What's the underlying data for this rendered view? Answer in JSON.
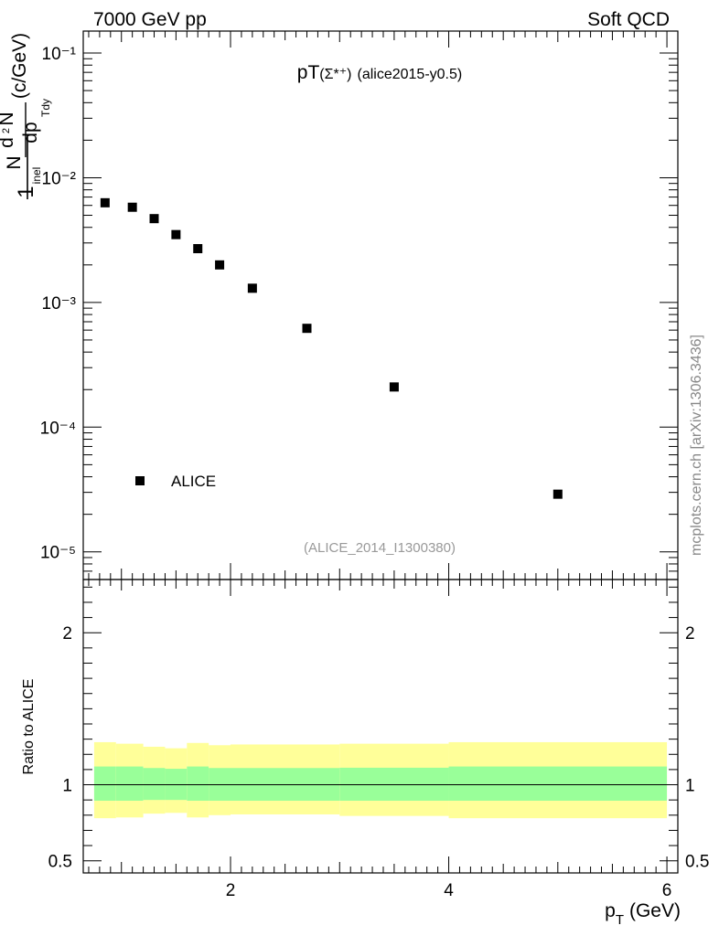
{
  "header": {
    "left_text": "7000 GeV pp",
    "right_text": "Soft QCD"
  },
  "plot": {
    "title_main": "pT",
    "title_particle": "(Σ*⁺)",
    "title_tag": "(alice2015-y0.5)",
    "watermark": "(ALICE_2014_I1300380)",
    "side_label": "mcplots.cern.ch [arXiv:1306.3436]"
  },
  "axes": {
    "ylabel_top": "(c/GeV)",
    "ylabel_ratio": "Ratio to ALICE",
    "xlabel": "p_T (GeV)",
    "xlabel_main": "p",
    "xlabel_sub": "T",
    "xlabel_unit": "(GeV)"
  },
  "chart_data": [
    {
      "type": "scatter",
      "panel": "main",
      "yscale": "log",
      "xlim": [
        0.65,
        6.1
      ],
      "ylim": [
        6e-06,
        0.15
      ],
      "ytick_labels": [
        "10⁻⁵",
        "10⁻⁴",
        "10⁻³",
        "10⁻²",
        "10⁻¹"
      ],
      "ytick_values": [
        1e-05,
        0.0001,
        0.001,
        0.01,
        0.1
      ],
      "series": [
        {
          "name": "ALICE",
          "color": "#000000",
          "x": [
            0.85,
            1.1,
            1.3,
            1.5,
            1.7,
            1.9,
            2.2,
            2.7,
            3.5,
            5.0
          ],
          "y": [
            0.0063,
            0.0058,
            0.0047,
            0.0035,
            0.0027,
            0.002,
            0.0013,
            0.00062,
            0.00021,
            2.9e-05
          ]
        }
      ],
      "legend": {
        "label": "ALICE",
        "placement": "bottom-left"
      }
    },
    {
      "type": "area",
      "panel": "ratio",
      "xlim": [
        0.65,
        6.1
      ],
      "ylim": [
        0.42,
        2.35
      ],
      "xtick_labels": [
        "2",
        "4",
        "6"
      ],
      "xtick_values": [
        2,
        4,
        6
      ],
      "ytick_labels": [
        "0.5",
        "1",
        "2"
      ],
      "ytick_values": [
        0.5,
        1,
        2
      ],
      "reference_line": 1,
      "bands": {
        "edges": [
          0.75,
          0.95,
          1.2,
          1.4,
          1.6,
          1.8,
          2.0,
          3.0,
          4.0,
          6.0
        ],
        "inner_color": "#99ff99",
        "outer_color": "#ffff99",
        "inner_low": [
          0.895,
          0.895,
          0.9,
          0.9,
          0.895,
          0.895,
          0.895,
          0.895,
          0.895
        ],
        "inner_high": [
          1.12,
          1.12,
          1.11,
          1.105,
          1.12,
          1.11,
          1.11,
          1.112,
          1.12
        ],
        "outer_low": [
          0.78,
          0.785,
          0.81,
          0.815,
          0.785,
          0.8,
          0.805,
          0.795,
          0.78
        ],
        "outer_high": [
          1.28,
          1.27,
          1.25,
          1.24,
          1.275,
          1.26,
          1.265,
          1.27,
          1.28
        ]
      }
    }
  ]
}
